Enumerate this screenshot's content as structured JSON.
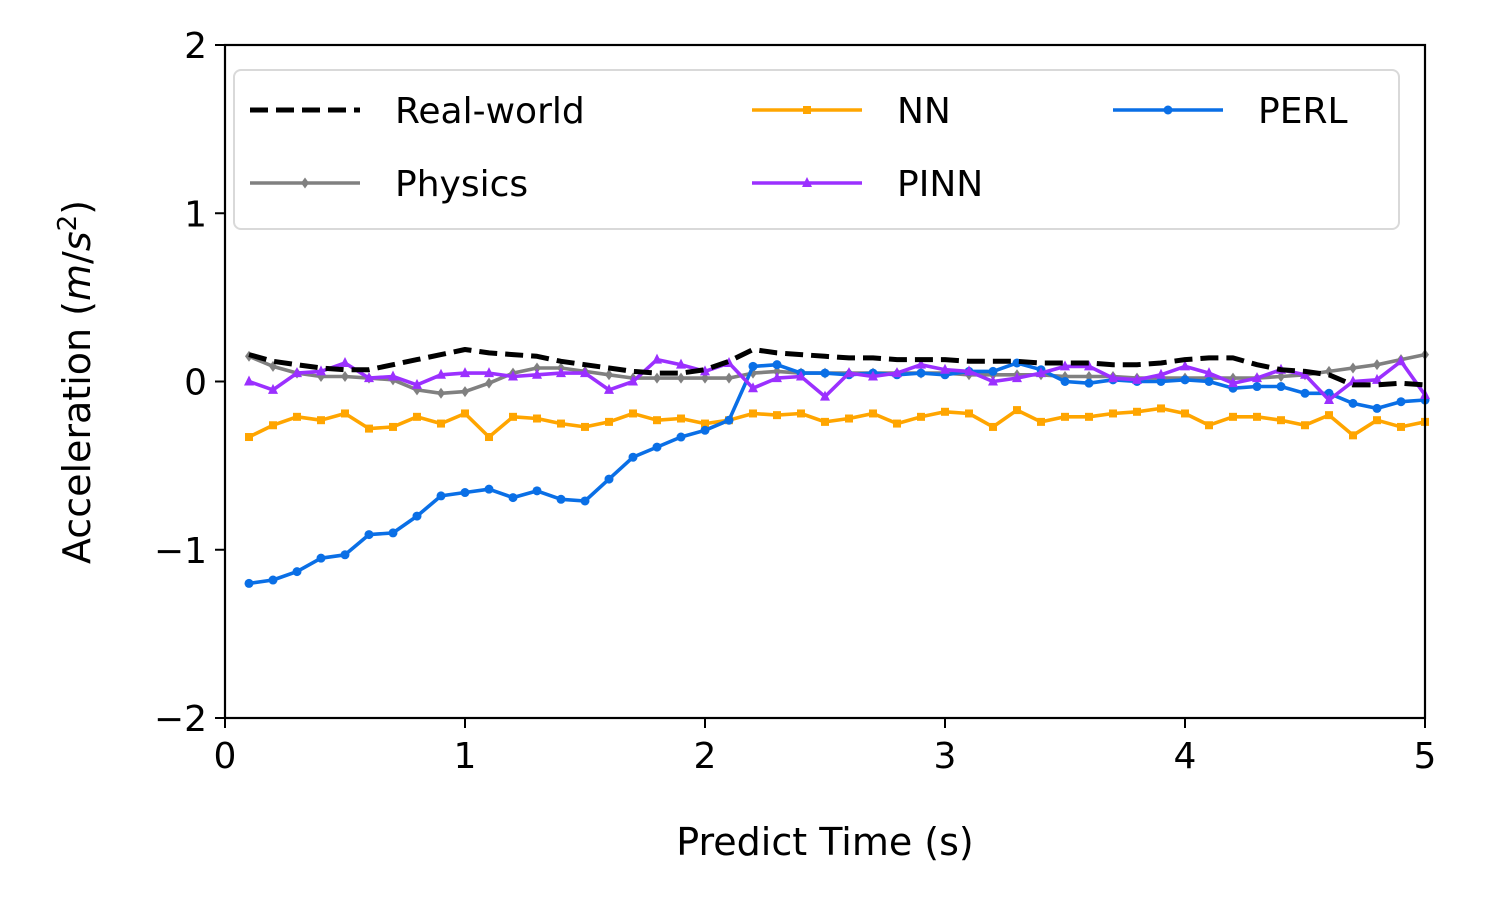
{
  "chart_data": {
    "type": "line",
    "xlabel": "Predict Time (s)",
    "ylabel_main": "Acceleration (",
    "ylabel_unit_m": "m",
    "ylabel_unit_slash": "/",
    "ylabel_unit_s": "s",
    "ylabel_unit_exp": "2",
    "ylabel_close": ")",
    "xlim": [
      0,
      5
    ],
    "ylim": [
      -2,
      2
    ],
    "xticks": [
      "0",
      "1",
      "2",
      "3",
      "4",
      "5"
    ],
    "yticks": [
      "−2",
      "−1",
      "0",
      "1",
      "2"
    ],
    "grid": false,
    "legend_position": "top",
    "x": [
      0.1,
      0.2,
      0.3,
      0.4,
      0.5,
      0.6,
      0.7,
      0.8,
      0.9,
      1.0,
      1.1,
      1.2,
      1.3,
      1.4,
      1.5,
      1.6,
      1.7,
      1.8,
      1.9,
      2.0,
      2.1,
      2.2,
      2.3,
      2.4,
      2.5,
      2.6,
      2.7,
      2.8,
      2.9,
      3.0,
      3.1,
      3.2,
      3.3,
      3.4,
      3.5,
      3.6,
      3.7,
      3.8,
      3.9,
      4.0,
      4.1,
      4.2,
      4.3,
      4.4,
      4.5,
      4.6,
      4.7,
      4.8,
      4.9,
      5.0
    ],
    "series": [
      {
        "name": "Real-world",
        "color": "#000000",
        "marker": "none",
        "dash": true,
        "values": [
          0.16,
          0.12,
          0.1,
          0.08,
          0.07,
          0.07,
          0.1,
          0.13,
          0.16,
          0.19,
          0.17,
          0.16,
          0.15,
          0.12,
          0.1,
          0.08,
          0.06,
          0.05,
          0.05,
          0.07,
          0.12,
          0.19,
          0.17,
          0.16,
          0.15,
          0.14,
          0.14,
          0.13,
          0.13,
          0.13,
          0.12,
          0.12,
          0.12,
          0.11,
          0.11,
          0.11,
          0.1,
          0.1,
          0.11,
          0.13,
          0.14,
          0.14,
          0.1,
          0.07,
          0.06,
          0.04,
          -0.02,
          -0.02,
          -0.01,
          -0.02
        ]
      },
      {
        "name": "Physics",
        "color": "#808080",
        "marker": "diamond",
        "dash": false,
        "values": [
          0.15,
          0.09,
          0.05,
          0.03,
          0.03,
          0.02,
          0.01,
          -0.05,
          -0.07,
          -0.06,
          -0.01,
          0.05,
          0.08,
          0.08,
          0.06,
          0.04,
          0.02,
          0.02,
          0.02,
          0.02,
          0.02,
          0.05,
          0.06,
          0.05,
          0.05,
          0.05,
          0.05,
          0.05,
          0.05,
          0.05,
          0.04,
          0.04,
          0.04,
          0.04,
          0.03,
          0.03,
          0.03,
          0.02,
          0.02,
          0.02,
          0.02,
          0.02,
          0.02,
          0.03,
          0.04,
          0.06,
          0.08,
          0.1,
          0.13,
          0.16
        ]
      },
      {
        "name": "NN",
        "color": "#FFA500",
        "marker": "square",
        "dash": false,
        "values": [
          -0.33,
          -0.26,
          -0.21,
          -0.23,
          -0.19,
          -0.28,
          -0.27,
          -0.21,
          -0.25,
          -0.19,
          -0.33,
          -0.21,
          -0.22,
          -0.25,
          -0.27,
          -0.24,
          -0.19,
          -0.23,
          -0.22,
          -0.25,
          -0.23,
          -0.19,
          -0.2,
          -0.19,
          -0.24,
          -0.22,
          -0.19,
          -0.25,
          -0.21,
          -0.18,
          -0.19,
          -0.27,
          -0.17,
          -0.24,
          -0.21,
          -0.21,
          -0.19,
          -0.18,
          -0.16,
          -0.19,
          -0.26,
          -0.21,
          -0.21,
          -0.23,
          -0.26,
          -0.2,
          -0.32,
          -0.23,
          -0.27,
          -0.24
        ]
      },
      {
        "name": "PINN",
        "color": "#9B30FF",
        "marker": "triangle",
        "dash": false,
        "values": [
          0.0,
          -0.05,
          0.05,
          0.06,
          0.11,
          0.02,
          0.03,
          -0.02,
          0.04,
          0.05,
          0.05,
          0.03,
          0.04,
          0.05,
          0.05,
          -0.05,
          0.0,
          0.13,
          0.1,
          0.06,
          0.11,
          -0.04,
          0.02,
          0.03,
          -0.09,
          0.05,
          0.03,
          0.05,
          0.1,
          0.07,
          0.06,
          0.0,
          0.02,
          0.05,
          0.09,
          0.09,
          0.02,
          0.01,
          0.04,
          0.09,
          0.05,
          -0.01,
          0.02,
          0.07,
          0.04,
          -0.11,
          0.0,
          0.01,
          0.12,
          -0.08
        ]
      },
      {
        "name": "PERL",
        "color": "#0A6FE6",
        "marker": "circle",
        "dash": false,
        "values": [
          -1.2,
          -1.18,
          -1.13,
          -1.05,
          -1.03,
          -0.91,
          -0.9,
          -0.8,
          -0.68,
          -0.66,
          -0.64,
          -0.69,
          -0.65,
          -0.7,
          -0.71,
          -0.58,
          -0.45,
          -0.39,
          -0.33,
          -0.29,
          -0.23,
          0.09,
          0.1,
          0.05,
          0.05,
          0.04,
          0.05,
          0.04,
          0.05,
          0.04,
          0.06,
          0.06,
          0.11,
          0.07,
          0.0,
          -0.01,
          0.01,
          0.0,
          0.0,
          0.01,
          0.0,
          -0.04,
          -0.03,
          -0.03,
          -0.07,
          -0.07,
          -0.13,
          -0.16,
          -0.12,
          -0.11
        ]
      }
    ]
  }
}
